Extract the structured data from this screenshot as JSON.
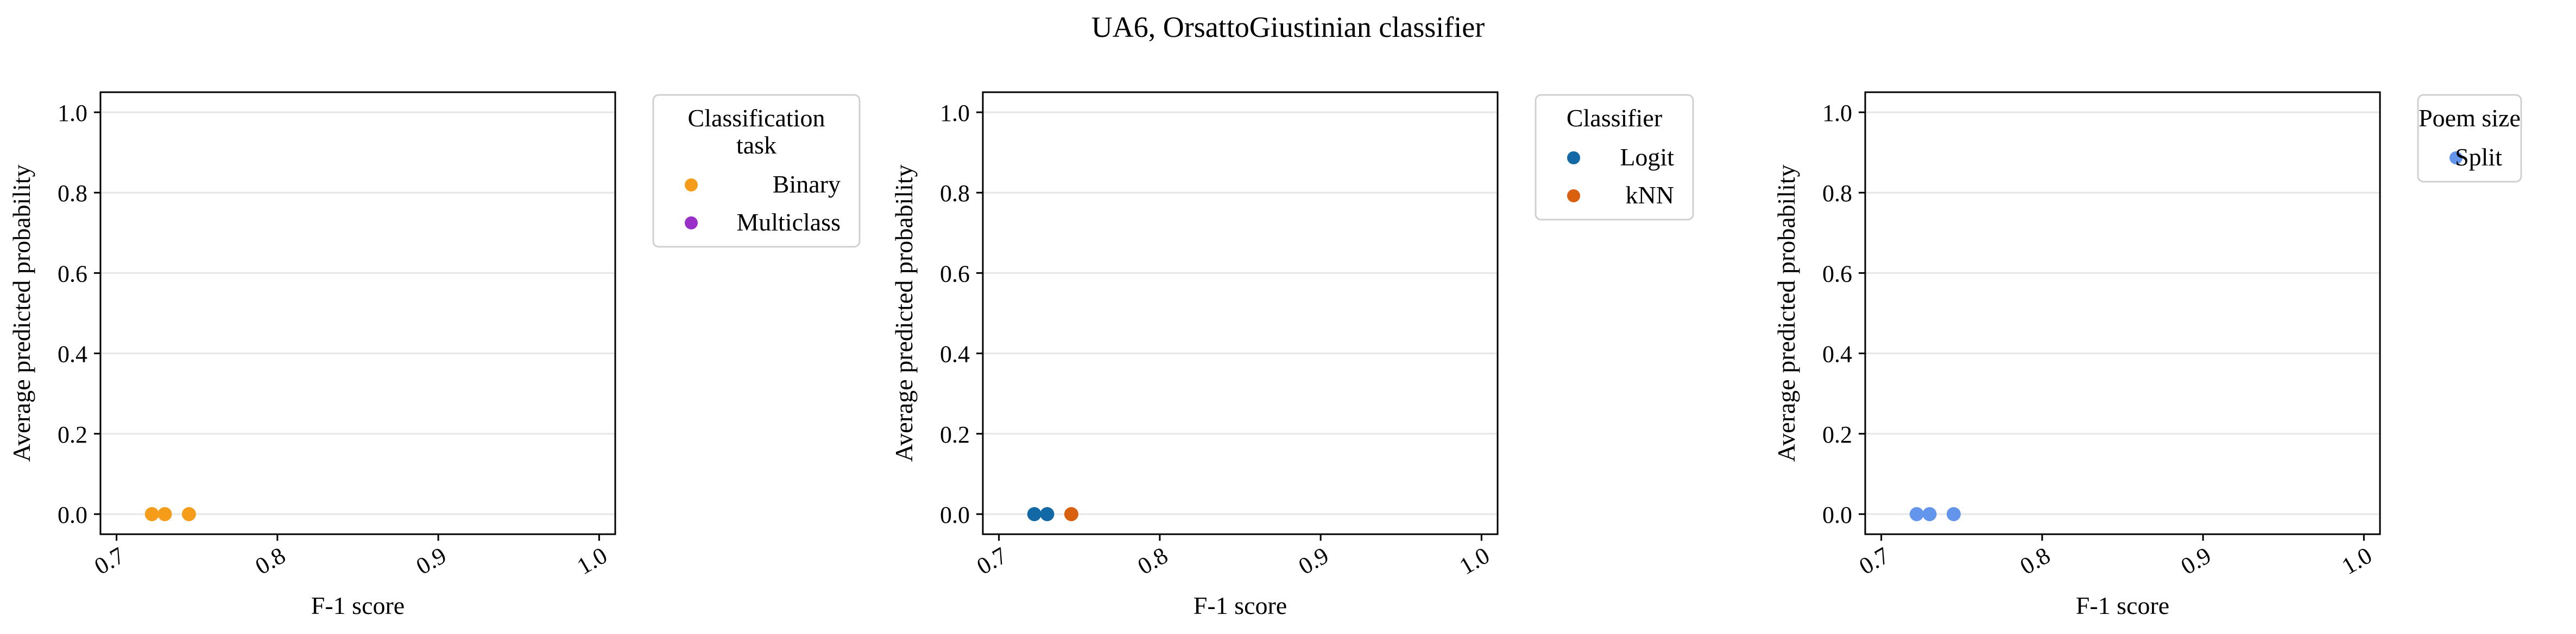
{
  "figure": {
    "title": "UA6, OrsattoGiustinian classifier"
  },
  "chart_data": [
    {
      "type": "scatter",
      "xlabel": "F-1 score",
      "ylabel": "Average predicted probability",
      "xlim": [
        0.69,
        1.01
      ],
      "ylim": [
        -0.05,
        1.05
      ],
      "xticks": [
        "0.7",
        "0.8",
        "0.9",
        "1.0"
      ],
      "yticks": [
        "0.0",
        "0.2",
        "0.4",
        "0.6",
        "0.8",
        "1.0"
      ],
      "grid": "horizontal",
      "legend": {
        "title_lines": [
          "Classification",
          "task"
        ],
        "placement": "outside-right"
      },
      "series": [
        {
          "name": "Binary",
          "color": "#f59c1a",
          "points": [
            {
              "x": 0.722,
              "y": 0.0
            },
            {
              "x": 0.73,
              "y": 0.0
            },
            {
              "x": 0.745,
              "y": 0.0
            }
          ]
        },
        {
          "name": "Multiclass",
          "color": "#9b30c9",
          "points": []
        }
      ]
    },
    {
      "type": "scatter",
      "xlabel": "F-1 score",
      "ylabel": "Average predicted probability",
      "xlim": [
        0.69,
        1.01
      ],
      "ylim": [
        -0.05,
        1.05
      ],
      "xticks": [
        "0.7",
        "0.8",
        "0.9",
        "1.0"
      ],
      "yticks": [
        "0.0",
        "0.2",
        "0.4",
        "0.6",
        "0.8",
        "1.0"
      ],
      "grid": "horizontal",
      "legend": {
        "title_lines": [
          "Classifier"
        ],
        "placement": "outside-right"
      },
      "series": [
        {
          "name": "Logit",
          "color": "#1369a6",
          "points": [
            {
              "x": 0.722,
              "y": 0.0
            },
            {
              "x": 0.73,
              "y": 0.0
            }
          ]
        },
        {
          "name": "kNN",
          "color": "#d8600f",
          "points": [
            {
              "x": 0.745,
              "y": 0.0
            }
          ]
        }
      ]
    },
    {
      "type": "scatter",
      "xlabel": "F-1 score",
      "ylabel": "Average predicted probability",
      "xlim": [
        0.69,
        1.01
      ],
      "ylim": [
        -0.05,
        1.05
      ],
      "xticks": [
        "0.7",
        "0.8",
        "0.9",
        "1.0"
      ],
      "yticks": [
        "0.0",
        "0.2",
        "0.4",
        "0.6",
        "0.8",
        "1.0"
      ],
      "grid": "horizontal",
      "legend": {
        "title_lines": [
          "Poem size"
        ],
        "placement": "outside-right"
      },
      "series": [
        {
          "name": "Split",
          "color": "#6495ed",
          "points": [
            {
              "x": 0.722,
              "y": 0.0
            },
            {
              "x": 0.73,
              "y": 0.0
            },
            {
              "x": 0.745,
              "y": 0.0
            }
          ]
        }
      ]
    }
  ]
}
